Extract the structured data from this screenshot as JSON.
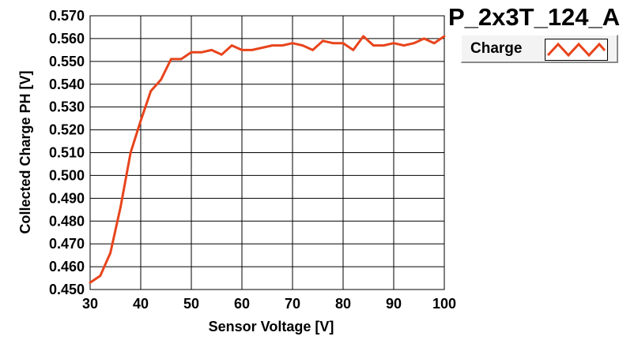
{
  "chart_data": {
    "type": "line",
    "title": "P_2x3T_124_A",
    "xlabel": "Sensor Voltage [V]",
    "ylabel": "Collected Charge PH [V]",
    "xlim": [
      30,
      100
    ],
    "ylim": [
      0.45,
      0.57
    ],
    "x_ticks": [
      30,
      40,
      50,
      60,
      70,
      80,
      90,
      100
    ],
    "y_ticks": [
      0.45,
      0.46,
      0.47,
      0.48,
      0.49,
      0.5,
      0.51,
      0.52,
      0.53,
      0.54,
      0.55,
      0.56,
      0.57
    ],
    "x_tick_labels": [
      "30",
      "40",
      "50",
      "60",
      "70",
      "80",
      "90",
      "100"
    ],
    "y_tick_labels": [
      "0.450",
      "0.460",
      "0.470",
      "0.480",
      "0.490",
      "0.500",
      "0.510",
      "0.520",
      "0.530",
      "0.540",
      "0.550",
      "0.560",
      "0.570"
    ],
    "grid": true,
    "legend_position": "top-right",
    "series": [
      {
        "name": "Charge",
        "color": "#e8441c",
        "x": [
          30,
          32,
          34,
          36,
          38,
          40,
          42,
          44,
          46,
          48,
          50,
          52,
          54,
          56,
          58,
          60,
          62,
          64,
          66,
          68,
          70,
          72,
          74,
          76,
          78,
          80,
          82,
          84,
          86,
          88,
          90,
          92,
          94,
          96,
          98,
          100
        ],
        "y": [
          0.453,
          0.456,
          0.466,
          0.486,
          0.51,
          0.524,
          0.537,
          0.542,
          0.551,
          0.551,
          0.554,
          0.554,
          0.555,
          0.553,
          0.557,
          0.555,
          0.555,
          0.556,
          0.557,
          0.557,
          0.558,
          0.557,
          0.555,
          0.559,
          0.558,
          0.558,
          0.555,
          0.561,
          0.557,
          0.557,
          0.558,
          0.557,
          0.558,
          0.56,
          0.558,
          0.561
        ]
      }
    ]
  },
  "legend": {
    "label": "Charge"
  }
}
